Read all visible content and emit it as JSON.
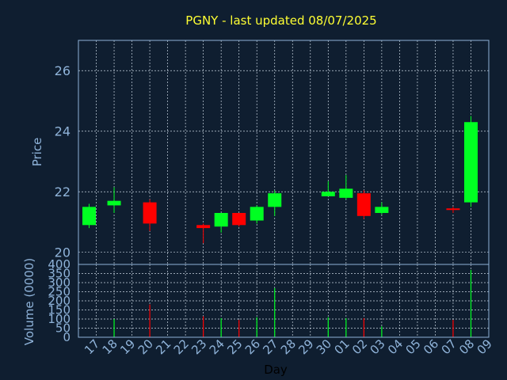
{
  "colors": {
    "background": "#0f1e30",
    "axis": "#8fb3d9",
    "grid": "#c8d4e0",
    "title": "#ffff33",
    "up": "#00ff22",
    "down": "#ff0000"
  },
  "chart_data": [
    {
      "type": "candlestick",
      "title": "PGNY - last updated 08/07/2025",
      "ylabel": "Price",
      "ylim": [
        19.6,
        27
      ],
      "yticks": [
        20,
        22,
        24,
        26
      ],
      "grid": true,
      "categories": [
        "17",
        "18",
        "19",
        "20",
        "21",
        "22",
        "23",
        "24",
        "25",
        "26",
        "27",
        "28",
        "29",
        "30",
        "01",
        "02",
        "03",
        "04",
        "05",
        "06",
        "07",
        "08",
        "09"
      ],
      "candles": [
        {
          "x": 16.6,
          "open": 20.9,
          "high": 21.6,
          "low": 20.8,
          "close": 21.5
        },
        {
          "x": 18.0,
          "open": 21.55,
          "high": 22.15,
          "low": 21.3,
          "close": 21.7
        },
        {
          "x": 20.0,
          "open": 21.65,
          "high": 21.75,
          "low": 20.7,
          "close": 20.95
        },
        {
          "x": 23.0,
          "open": 20.9,
          "high": 20.95,
          "low": 20.3,
          "close": 20.8
        },
        {
          "x": 24.0,
          "open": 20.85,
          "high": 21.3,
          "low": 20.65,
          "close": 21.3
        },
        {
          "x": 25.0,
          "open": 21.3,
          "high": 21.3,
          "low": 20.85,
          "close": 20.9
        },
        {
          "x": 26.0,
          "open": 21.05,
          "high": 21.55,
          "low": 20.95,
          "close": 21.5
        },
        {
          "x": 27.0,
          "open": 21.5,
          "high": 22.05,
          "low": 21.2,
          "close": 21.95
        },
        {
          "x": 30.0,
          "open": 21.85,
          "high": 22.35,
          "low": 21.85,
          "close": 22.0
        },
        {
          "x": 31.0,
          "open": 21.8,
          "high": 22.55,
          "low": 21.75,
          "close": 22.1
        },
        {
          "x": 32.0,
          "open": 21.95,
          "high": 22.05,
          "low": 21.1,
          "close": 21.2
        },
        {
          "x": 33.0,
          "open": 21.3,
          "high": 21.65,
          "low": 21.25,
          "close": 21.5
        },
        {
          "x": 37.0,
          "open": 21.45,
          "high": 21.5,
          "low": 21.3,
          "close": 21.4
        },
        {
          "x": 38.0,
          "open": 21.65,
          "high": 24.5,
          "low": 21.5,
          "close": 24.3
        }
      ]
    },
    {
      "type": "bar",
      "ylabel": "Volume (0000)",
      "xlabel": "Day",
      "ylim": [
        0,
        400
      ],
      "yticks": [
        0,
        50,
        100,
        150,
        200,
        250,
        300,
        350,
        400
      ],
      "grid": true,
      "bars": [
        {
          "x": 18.0,
          "value": 100,
          "up": true
        },
        {
          "x": 20.0,
          "value": 180,
          "up": false
        },
        {
          "x": 23.0,
          "value": 115,
          "up": false
        },
        {
          "x": 24.0,
          "value": 105,
          "up": true
        },
        {
          "x": 25.0,
          "value": 95,
          "up": false
        },
        {
          "x": 26.0,
          "value": 110,
          "up": true
        },
        {
          "x": 27.0,
          "value": 270,
          "up": true
        },
        {
          "x": 30.0,
          "value": 110,
          "up": true
        },
        {
          "x": 31.0,
          "value": 105,
          "up": true
        },
        {
          "x": 32.0,
          "value": 105,
          "up": false
        },
        {
          "x": 33.0,
          "value": 60,
          "up": true
        },
        {
          "x": 37.0,
          "value": 95,
          "up": false
        },
        {
          "x": 38.0,
          "value": 370,
          "up": true
        }
      ]
    }
  ]
}
